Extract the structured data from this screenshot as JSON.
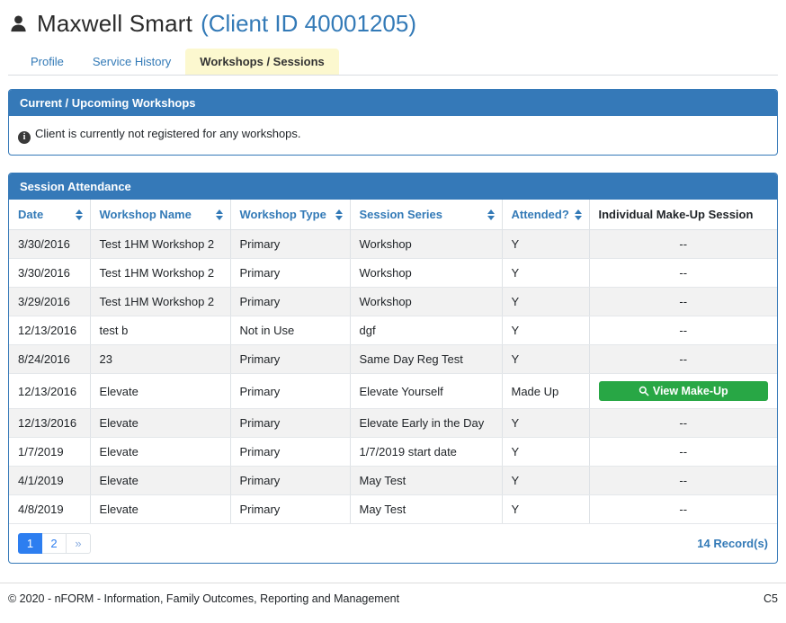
{
  "header": {
    "client_name": "Maxwell Smart",
    "client_id_label": "(Client ID 40001205)"
  },
  "tabs": [
    {
      "label": "Profile",
      "active": false
    },
    {
      "label": "Service History",
      "active": false
    },
    {
      "label": "Workshops / Sessions",
      "active": true
    }
  ],
  "upcoming_panel": {
    "title": "Current / Upcoming Workshops",
    "empty_message": "Client is currently not registered for any workshops."
  },
  "attendance_panel": {
    "title": "Session Attendance",
    "columns": [
      {
        "label": "Date",
        "sortable": true
      },
      {
        "label": "Workshop Name",
        "sortable": true
      },
      {
        "label": "Workshop Type",
        "sortable": true
      },
      {
        "label": "Session Series",
        "sortable": true
      },
      {
        "label": "Attended?",
        "sortable": true
      },
      {
        "label": "Individual Make-Up Session",
        "sortable": false
      }
    ],
    "rows": [
      {
        "date": "3/30/2016",
        "workshop_name": "Test 1HM Workshop 2",
        "workshop_type": "Primary",
        "session_series": "Workshop",
        "attended": "Y",
        "make_up": "--"
      },
      {
        "date": "3/30/2016",
        "workshop_name": "Test 1HM Workshop 2",
        "workshop_type": "Primary",
        "session_series": "Workshop",
        "attended": "Y",
        "make_up": "--"
      },
      {
        "date": "3/29/2016",
        "workshop_name": "Test 1HM Workshop 2",
        "workshop_type": "Primary",
        "session_series": "Workshop",
        "attended": "Y",
        "make_up": "--"
      },
      {
        "date": "12/13/2016",
        "workshop_name": "test b",
        "workshop_type": "Not in Use",
        "session_series": "dgf",
        "attended": "Y",
        "make_up": "--"
      },
      {
        "date": "8/24/2016",
        "workshop_name": "23",
        "workshop_type": "Primary",
        "session_series": "Same Day Reg Test",
        "attended": "Y",
        "make_up": "--"
      },
      {
        "date": "12/13/2016",
        "workshop_name": "Elevate",
        "workshop_type": "Primary",
        "session_series": "Elevate Yourself",
        "attended": "Made Up",
        "make_up": "button"
      },
      {
        "date": "12/13/2016",
        "workshop_name": "Elevate",
        "workshop_type": "Primary",
        "session_series": "Elevate Early in the Day",
        "attended": "Y",
        "make_up": "--"
      },
      {
        "date": "1/7/2019",
        "workshop_name": "Elevate",
        "workshop_type": "Primary",
        "session_series": "1/7/2019 start date",
        "attended": "Y",
        "make_up": "--"
      },
      {
        "date": "4/1/2019",
        "workshop_name": "Elevate",
        "workshop_type": "Primary",
        "session_series": "May Test",
        "attended": "Y",
        "make_up": "--"
      },
      {
        "date": "4/8/2019",
        "workshop_name": "Elevate",
        "workshop_type": "Primary",
        "session_series": "May Test",
        "attended": "Y",
        "make_up": "--"
      }
    ],
    "make_up_button_label": "View Make-Up",
    "pagination": {
      "pages": [
        {
          "label": "1",
          "active": true
        },
        {
          "label": "2",
          "active": false
        },
        {
          "label": "»",
          "active": false
        }
      ],
      "record_count": "14 Record(s)"
    }
  },
  "footer": {
    "copyright": "© 2020 - nFORM - Information, Family Outcomes, Reporting and Management",
    "page_code": "C5"
  },
  "icons": {
    "user": "user-icon",
    "info": "info-icon",
    "sort": "sort-updown-icon",
    "search": "search-icon"
  },
  "colors": {
    "panel_header_blue": "#3579b8",
    "link_blue": "#337ab7",
    "active_tab_yellow": "#fcf8cf",
    "button_green": "#28a745",
    "pagination_active_blue": "#2d7ef0",
    "row_stripe_gray": "#f2f2f2"
  }
}
